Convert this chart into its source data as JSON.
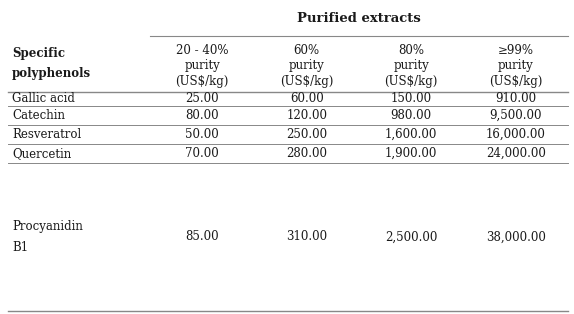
{
  "title": "Purified extracts",
  "col_header_row1": [
    "20 - 40%",
    "60%",
    "80%",
    "≥99%"
  ],
  "col_header_row2": [
    "purity",
    "purity",
    "purity",
    "purity"
  ],
  "col_header_row3": [
    "(US$/kg)",
    "(US$/kg)",
    "(US$/kg)",
    "(US$/kg)"
  ],
  "row_labels": [
    "Gallic acid",
    "Catechin",
    "Resveratrol",
    "Quercetin",
    "Procyanidin\nB1"
  ],
  "data": [
    [
      "25.00",
      "60.00",
      "150.00",
      "910.00"
    ],
    [
      "80.00",
      "120.00",
      "980.00",
      "9,500.00"
    ],
    [
      "50.00",
      "250.00",
      "1,600.00",
      "16,000.00"
    ],
    [
      "70.00",
      "280.00",
      "1,900.00",
      "24,000.00"
    ],
    [
      "85.00",
      "310.00",
      "2,500.00",
      "38,000.00"
    ]
  ],
  "col_label_header": "Specific\npolyphenols",
  "background_color": "#ffffff",
  "text_color": "#1a1a1a",
  "line_color": "#888888",
  "font_size": 8.5,
  "title_font_size": 9.5
}
